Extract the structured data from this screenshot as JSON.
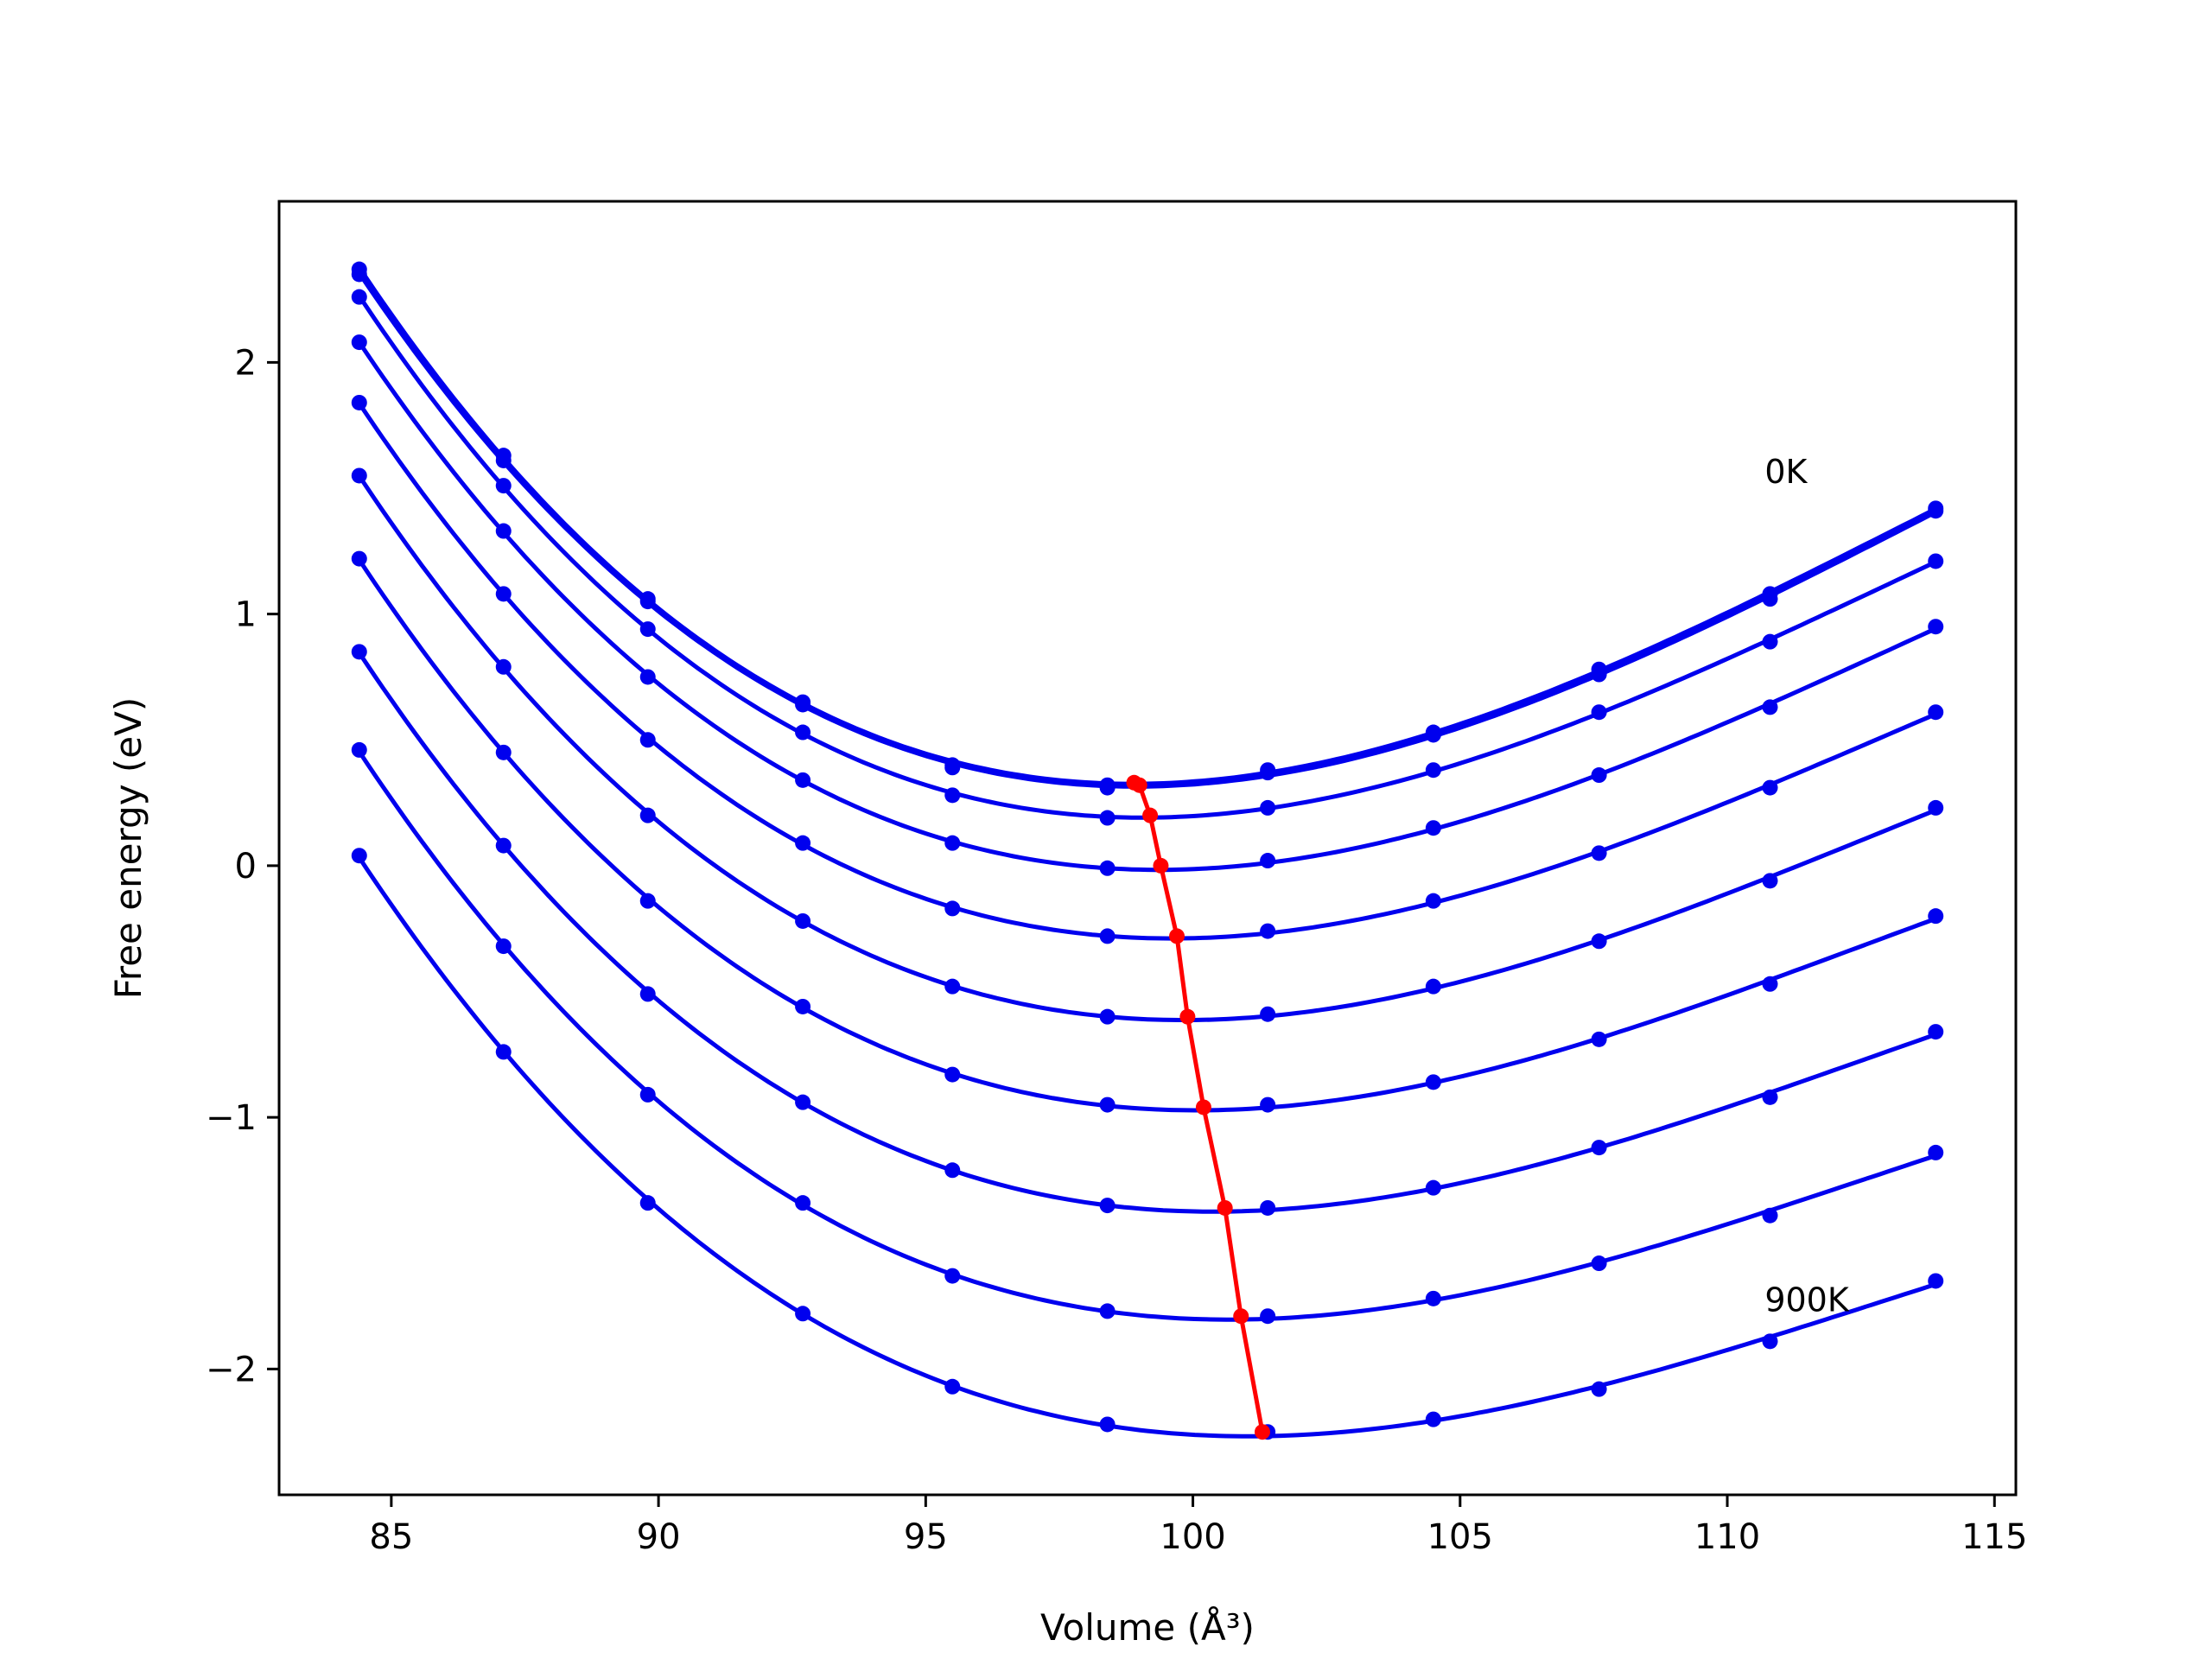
{
  "chart_data": {
    "type": "line",
    "title": "",
    "xlabel": "Volume (Å³)",
    "ylabel": "Free energy (eV)",
    "xlim": [
      82.9,
      115.4
    ],
    "ylim": [
      -2.5,
      2.64
    ],
    "xticks": [
      85,
      90,
      95,
      100,
      105,
      110,
      115
    ],
    "yticks": [
      -2,
      -1,
      0,
      1,
      2
    ],
    "xtick_labels": [
      "85",
      "90",
      "95",
      "100",
      "105",
      "110",
      "115"
    ],
    "ytick_labels": [
      "−2",
      "−1",
      "0",
      "1",
      "2"
    ],
    "grid": false,
    "legend": "none",
    "colors": {
      "curves": "#0000ee",
      "minima": "#ff0000"
    },
    "x": [
      84.4,
      87.1,
      89.8,
      92.7,
      95.5,
      98.4,
      101.4,
      104.5,
      107.6,
      110.8,
      113.9
    ],
    "series": [
      {
        "values": [
          2.37,
          1.63,
          1.06,
          0.65,
          0.4,
          0.32,
          0.38,
          0.53,
          0.78,
          1.08,
          1.42
        ]
      },
      {
        "values": [
          2.35,
          1.61,
          1.05,
          0.64,
          0.39,
          0.31,
          0.37,
          0.52,
          0.76,
          1.06,
          1.41
        ]
      },
      {
        "values": [
          2.26,
          1.51,
          0.94,
          0.53,
          0.28,
          0.19,
          0.23,
          0.38,
          0.61,
          0.89,
          1.21
        ]
      },
      {
        "values": [
          2.08,
          1.33,
          0.75,
          0.34,
          0.09,
          -0.01,
          0.02,
          0.15,
          0.36,
          0.63,
          0.95
        ]
      },
      {
        "values": [
          1.84,
          1.08,
          0.5,
          0.09,
          -0.17,
          -0.28,
          -0.26,
          -0.14,
          0.05,
          0.31,
          0.61
        ]
      },
      {
        "values": [
          1.55,
          0.79,
          0.2,
          -0.22,
          -0.48,
          -0.6,
          -0.59,
          -0.48,
          -0.3,
          -0.06,
          0.23
        ]
      },
      {
        "values": [
          1.22,
          0.45,
          -0.14,
          -0.56,
          -0.83,
          -0.95,
          -0.95,
          -0.86,
          -0.69,
          -0.47,
          -0.2
        ]
      },
      {
        "values": [
          0.85,
          0.08,
          -0.51,
          -0.94,
          -1.21,
          -1.35,
          -1.36,
          -1.28,
          -1.12,
          -0.92,
          -0.66
        ]
      },
      {
        "values": [
          0.46,
          -0.32,
          -0.91,
          -1.34,
          -1.63,
          -1.77,
          -1.79,
          -1.72,
          -1.58,
          -1.39,
          -1.14
        ]
      },
      {
        "values": [
          0.04,
          -0.74,
          -1.34,
          -1.78,
          -2.07,
          -2.22,
          -2.25,
          -2.2,
          -2.08,
          -1.89,
          -1.65
        ]
      }
    ],
    "minima": {
      "x": [
        98.9,
        99.0,
        99.2,
        99.4,
        99.7,
        99.9,
        100.2,
        100.6,
        100.9,
        101.3
      ],
      "y": [
        0.33,
        0.32,
        0.2,
        0.0,
        -0.28,
        -0.6,
        -0.96,
        -1.36,
        -1.79,
        -2.25
      ]
    },
    "annotations": [
      {
        "text": "0K",
        "x": 110.7,
        "y": 1.52
      },
      {
        "text": "900K",
        "x": 110.7,
        "y": -1.77
      }
    ]
  }
}
